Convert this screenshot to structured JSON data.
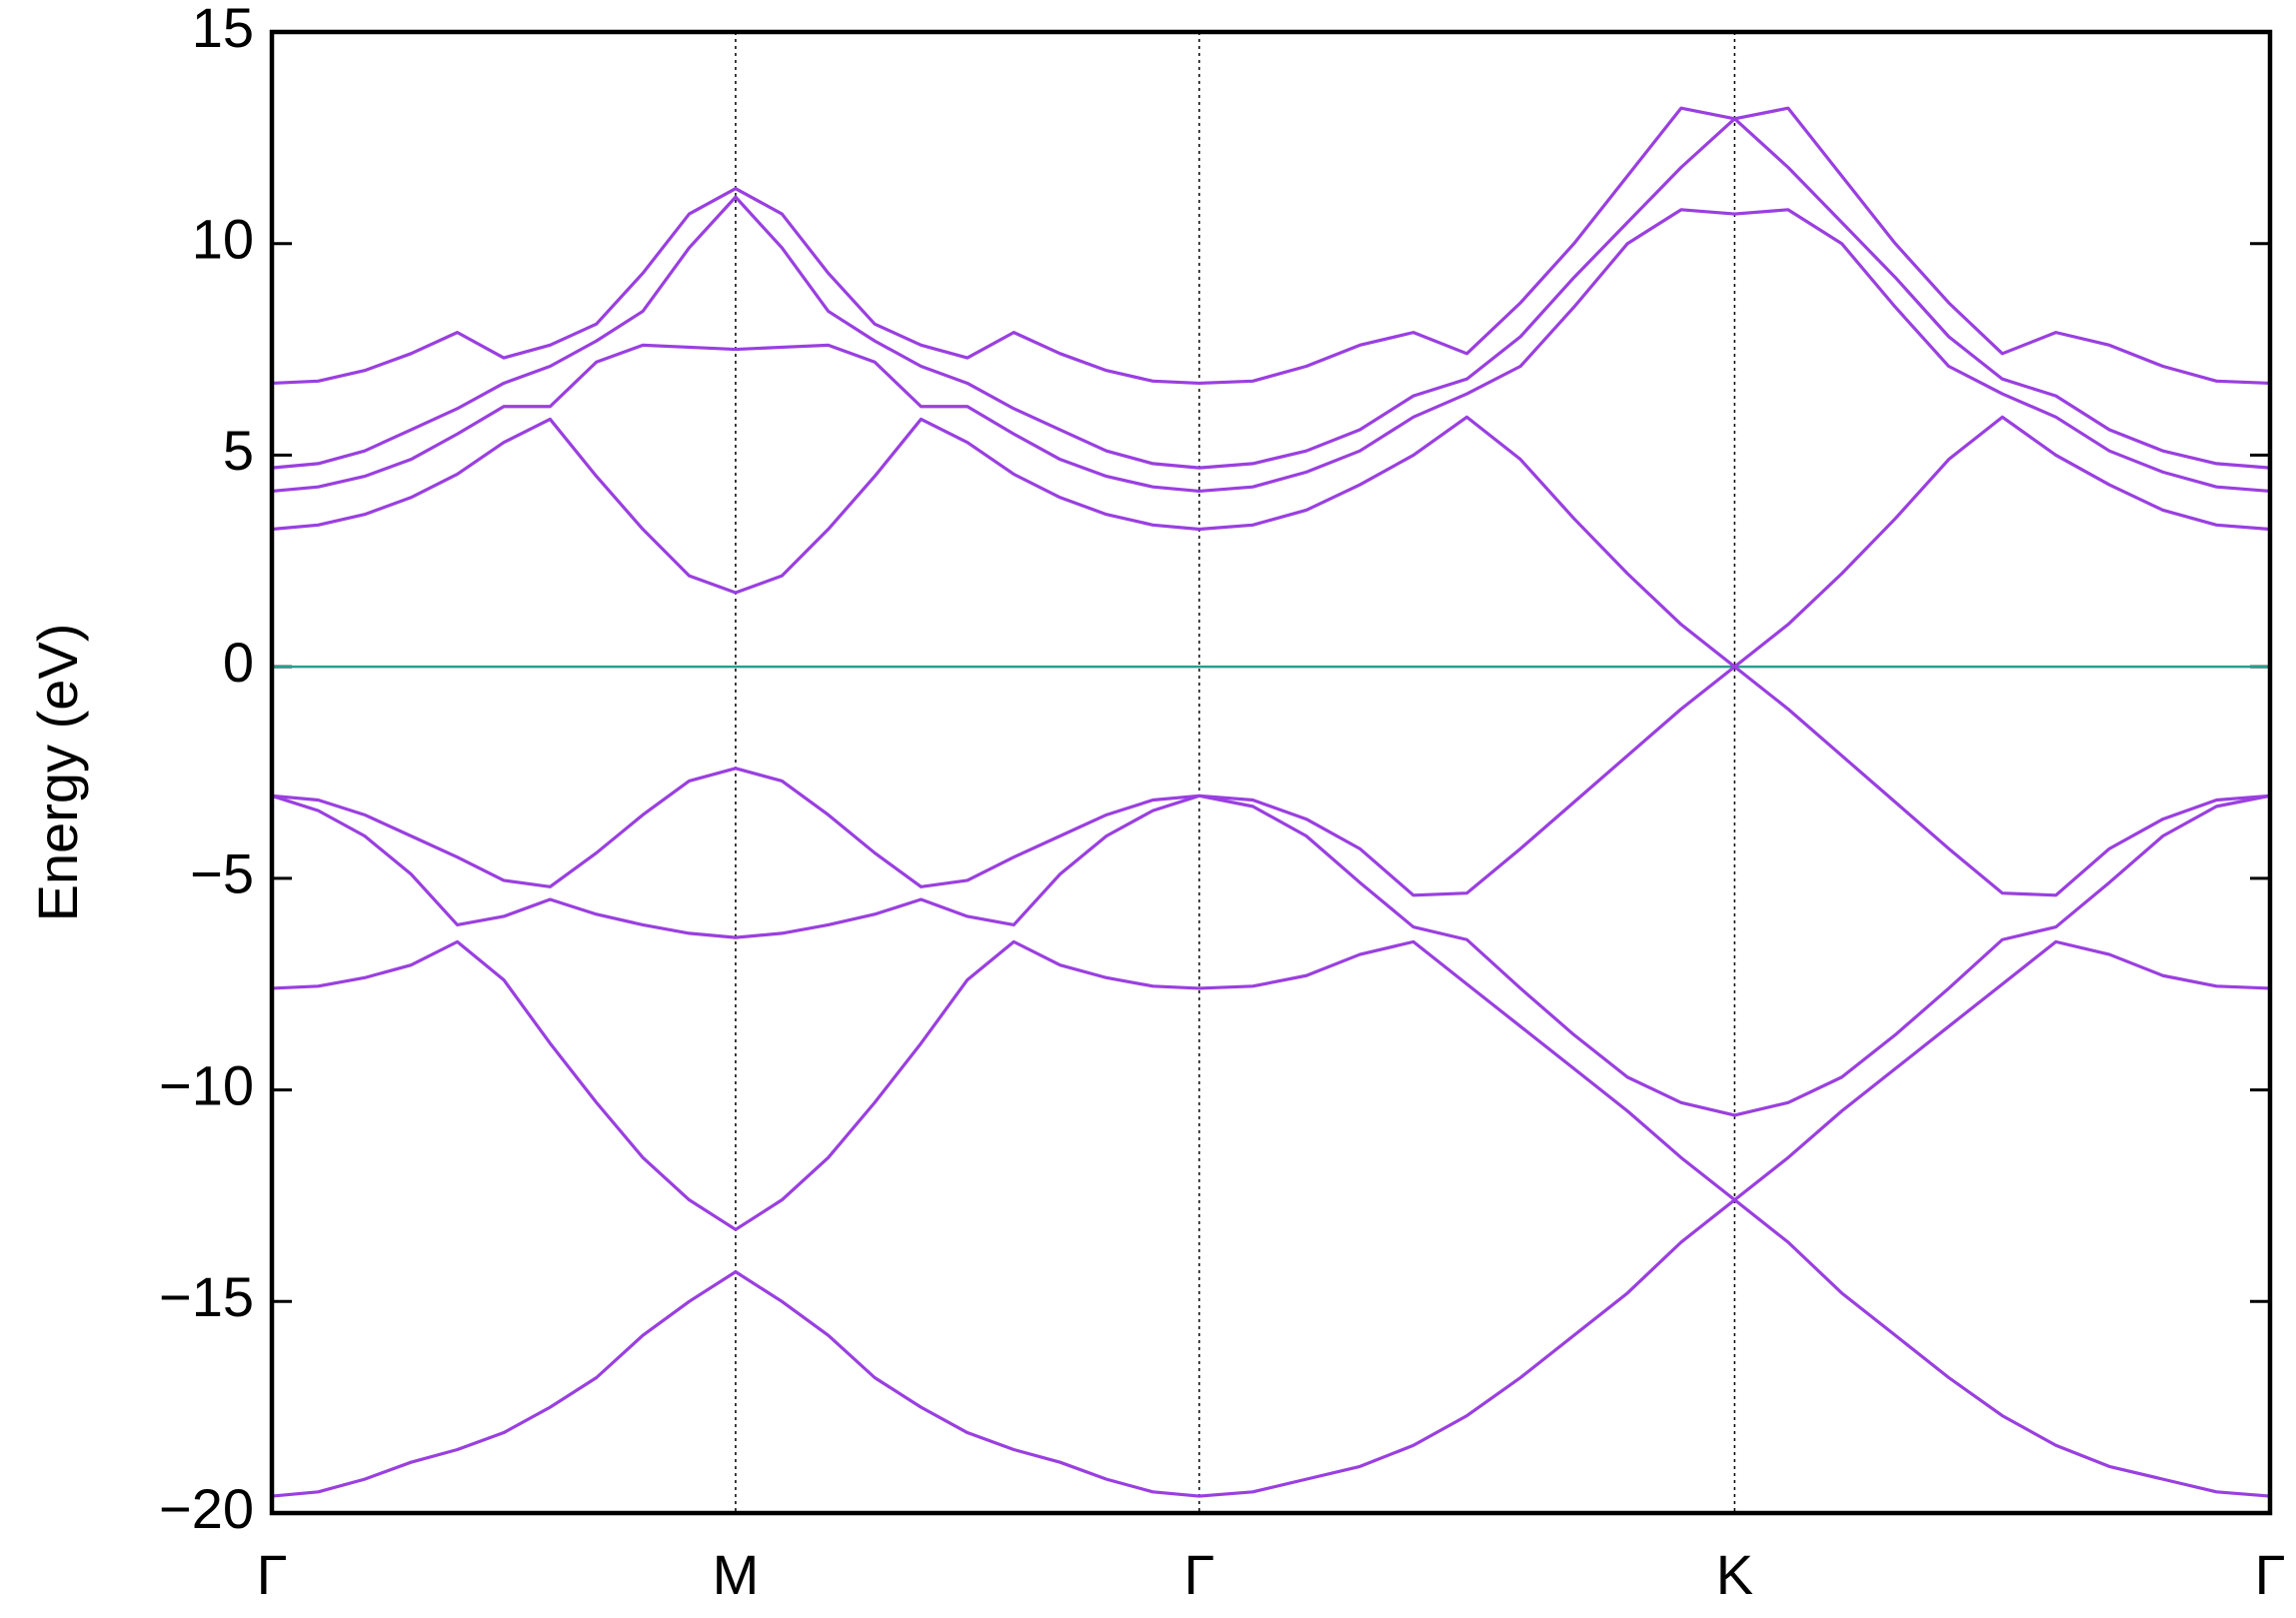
{
  "chart_data": {
    "type": "line",
    "ylabel": "Energy (eV)",
    "x": [
      0,
      0.0577,
      0.1155,
      0.1732,
      0.2309,
      0.2887,
      0.3464,
      0.4041,
      0.4619,
      0.5196,
      0.5774,
      0.6351,
      0.6928,
      0.7506,
      0.8083,
      0.866,
      0.9238,
      0.9815,
      1.0392,
      1.097,
      1.1547,
      1.2214,
      1.288,
      1.3547,
      1.4214,
      1.488,
      1.5547,
      1.6214,
      1.688,
      1.7547,
      1.8214,
      1.888,
      1.9547,
      2.0214,
      2.088,
      2.1547,
      2.2214,
      2.288,
      2.3547,
      2.4214,
      2.488
    ],
    "xlim": [
      0,
      2.488
    ],
    "xticks": [
      {
        "value": 0,
        "label": "Γ"
      },
      {
        "value": 0.5774,
        "label": "M"
      },
      {
        "value": 1.1547,
        "label": "Γ"
      },
      {
        "value": 1.8214,
        "label": "K"
      },
      {
        "value": 2.488,
        "label": "Γ"
      }
    ],
    "ylim": [
      -20,
      15
    ],
    "yticks": [
      {
        "value": -20,
        "label": "−20"
      },
      {
        "value": -15,
        "label": "−15"
      },
      {
        "value": -10,
        "label": "−10"
      },
      {
        "value": -5,
        "label": "−5"
      },
      0,
      5,
      10,
      15
    ],
    "xgrid": true,
    "color": "#9a3fe0",
    "reference_line": {
      "value": 0,
      "color": "#2a9d8f"
    },
    "series": [
      {
        "values": [
          -19.6,
          -19.5,
          -19.2,
          -18.8,
          -18.5,
          -18.1,
          -17.5,
          -16.8,
          -15.8,
          -15.0,
          -14.3,
          -15.0,
          -15.8,
          -16.8,
          -17.5,
          -18.1,
          -18.5,
          -18.8,
          -19.2,
          -19.5,
          -19.6,
          -19.5,
          -19.2,
          -18.9,
          -18.4,
          -17.7,
          -16.8,
          -15.8,
          -14.8,
          -13.6,
          -12.6,
          -13.6,
          -14.8,
          -15.8,
          -16.8,
          -17.7,
          -18.4,
          -18.9,
          -19.2,
          -19.5,
          -19.6
        ]
      },
      {
        "values": [
          -7.6,
          -7.55,
          -7.35,
          -7.05,
          -6.5,
          -7.4,
          -8.9,
          -10.3,
          -11.6,
          -12.6,
          -13.3,
          -12.6,
          -11.6,
          -10.3,
          -8.9,
          -7.4,
          -6.5,
          -7.05,
          -7.35,
          -7.55,
          -7.6,
          -7.55,
          -7.3,
          -6.8,
          -6.5,
          -7.5,
          -8.5,
          -9.5,
          -10.5,
          -11.6,
          -12.6,
          -11.6,
          -10.5,
          -9.5,
          -8.5,
          -7.5,
          -6.5,
          -6.8,
          -7.3,
          -7.55,
          -7.6
        ]
      },
      {
        "values": [
          -3.05,
          -3.4,
          -4.0,
          -4.9,
          -6.1,
          -5.9,
          -5.5,
          -5.85,
          -6.1,
          -6.3,
          -6.4,
          -6.3,
          -6.1,
          -5.85,
          -5.5,
          -5.9,
          -6.1,
          -4.9,
          -4.0,
          -3.4,
          -3.05,
          -3.3,
          -4.0,
          -5.1,
          -6.15,
          -6.45,
          -7.6,
          -8.7,
          -9.7,
          -10.3,
          -10.6,
          -10.3,
          -9.7,
          -8.7,
          -7.6,
          -6.45,
          -6.15,
          -5.1,
          -4.0,
          -3.3,
          -3.05
        ]
      },
      {
        "values": [
          -3.05,
          -3.15,
          -3.5,
          -4.0,
          -4.5,
          -5.05,
          -5.2,
          -4.4,
          -3.5,
          -2.7,
          -2.4,
          -2.7,
          -3.5,
          -4.4,
          -5.2,
          -5.05,
          -4.5,
          -4.0,
          -3.5,
          -3.15,
          -3.05,
          -3.15,
          -3.6,
          -4.3,
          -5.4,
          -5.35,
          -4.3,
          -3.2,
          -2.1,
          -1.0,
          0,
          -1.0,
          -2.1,
          -3.2,
          -4.3,
          -5.35,
          -5.4,
          -4.3,
          -3.6,
          -3.15,
          -3.05
        ]
      },
      {
        "values": [
          3.25,
          3.35,
          3.6,
          4.0,
          4.55,
          5.3,
          5.85,
          4.5,
          3.25,
          2.15,
          1.75,
          2.15,
          3.25,
          4.5,
          5.85,
          5.3,
          4.55,
          4.0,
          3.6,
          3.35,
          3.25,
          3.35,
          3.7,
          4.3,
          5.0,
          5.9,
          4.9,
          3.5,
          2.2,
          1.0,
          0,
          1.0,
          2.2,
          3.5,
          4.9,
          5.9,
          5.0,
          4.3,
          3.7,
          3.35,
          3.25
        ]
      },
      {
        "values": [
          4.15,
          4.25,
          4.5,
          4.9,
          5.5,
          6.15,
          6.15,
          7.2,
          7.6,
          7.55,
          7.5,
          7.55,
          7.6,
          7.2,
          6.15,
          6.15,
          5.5,
          4.9,
          4.5,
          4.25,
          4.15,
          4.25,
          4.6,
          5.1,
          5.9,
          6.45,
          7.1,
          8.5,
          10.0,
          10.8,
          10.7,
          10.8,
          10.0,
          8.5,
          7.1,
          6.45,
          5.9,
          5.1,
          4.6,
          4.25,
          4.15
        ]
      },
      {
        "values": [
          4.7,
          4.8,
          5.1,
          5.6,
          6.1,
          6.7,
          7.1,
          7.7,
          8.4,
          9.9,
          11.1,
          9.9,
          8.4,
          7.7,
          7.1,
          6.7,
          6.1,
          5.6,
          5.1,
          4.8,
          4.7,
          4.8,
          5.1,
          5.6,
          6.4,
          6.8,
          7.8,
          9.2,
          10.5,
          11.8,
          12.95,
          11.8,
          10.5,
          9.2,
          7.8,
          6.8,
          6.4,
          5.6,
          5.1,
          4.8,
          4.7
        ]
      },
      {
        "values": [
          6.7,
          6.75,
          7.0,
          7.4,
          7.9,
          7.3,
          7.6,
          8.1,
          9.3,
          10.7,
          11.3,
          10.7,
          9.3,
          8.1,
          7.6,
          7.3,
          7.9,
          7.4,
          7.0,
          6.75,
          6.7,
          6.75,
          7.1,
          7.6,
          7.9,
          7.4,
          8.6,
          10.0,
          11.6,
          13.2,
          12.95,
          13.2,
          11.6,
          10.0,
          8.6,
          7.4,
          7.9,
          7.6,
          7.1,
          6.75,
          6.7
        ]
      }
    ]
  }
}
